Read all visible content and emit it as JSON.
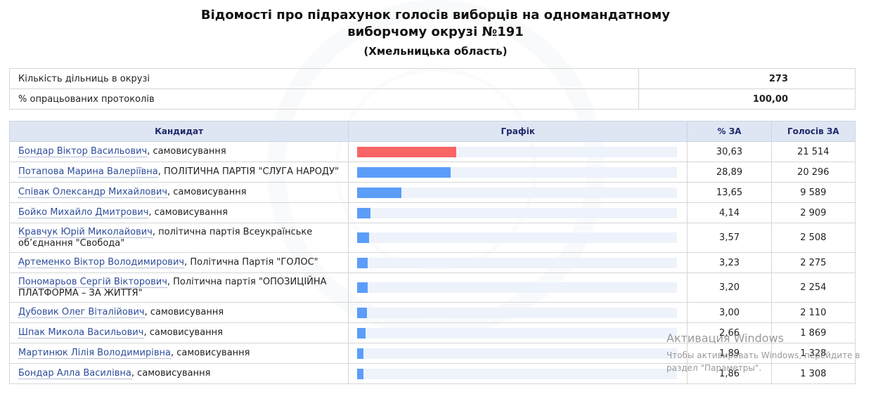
{
  "title_line1": "Відомості про підрахунок голосів виборців на одномандатному",
  "title_line2": "виборчому окрузі №191",
  "region": "(Хмельницька область)",
  "summary": [
    {
      "label": "Кількість дільниць в окрузі",
      "value": "273"
    },
    {
      "label": "% опрацьованих протоколів",
      "value": "100,00"
    }
  ],
  "columns": {
    "candidate": "Кандидат",
    "graph": "Графік",
    "percent": "% ЗА",
    "votes": "Голосів ЗА"
  },
  "colors": {
    "leader_bar": "#f96464",
    "bar": "#5b9df9",
    "track": "#eef2fb",
    "header_bg": "#dfe6f3"
  },
  "candidates": [
    {
      "name": "Бондар Віктор Васильович",
      "party": ", самовисування",
      "percent": "30,63",
      "votes": "21 514",
      "share": 30.63
    },
    {
      "name": "Потапова Марина Валеріївна",
      "party": ", ПОЛІТИЧНА ПАРТІЯ \"СЛУГА НАРОДУ\"",
      "percent": "28,89",
      "votes": "20 296",
      "share": 28.89
    },
    {
      "name": "Співак Олександр Михайлович",
      "party": ", самовисування",
      "percent": "13,65",
      "votes": "9 589",
      "share": 13.65
    },
    {
      "name": "Бойко Михайло Дмитрович",
      "party": ", самовисування",
      "percent": "4,14",
      "votes": "2 909",
      "share": 4.14
    },
    {
      "name": "Кравчук Юрій Миколайович",
      "party": ", політична партія Всеукраїнське об’єднання \"Свобода\"",
      "percent": "3,57",
      "votes": "2 508",
      "share": 3.57
    },
    {
      "name": "Артеменко Віктор Володимирович",
      "party": ", Політична Партія \"ГОЛОС\"",
      "percent": "3,23",
      "votes": "2 275",
      "share": 3.23
    },
    {
      "name": "Пономарьов Сергій Вікторович",
      "party": ", Політична партія \"ОПОЗИЦІЙНА ПЛАТФОРМА – ЗА ЖИТТЯ\"",
      "percent": "3,20",
      "votes": "2 254",
      "share": 3.2
    },
    {
      "name": "Дубовик Олег Віталійович",
      "party": ", самовисування",
      "percent": "3,00",
      "votes": "2 110",
      "share": 3.0
    },
    {
      "name": "Шпак Микола Васильович",
      "party": ", самовисування",
      "percent": "2,66",
      "votes": "1 869",
      "share": 2.66
    },
    {
      "name": "Мартинюк Лілія Володимирівна",
      "party": ", самовисування",
      "percent": "1,89",
      "votes": "1 328",
      "share": 1.89
    },
    {
      "name": "Бондар Алла Василівна",
      "party": ", самовисування",
      "percent": "1,86",
      "votes": "1 308",
      "share": 1.86
    }
  ],
  "windows_notice": {
    "line1": "Активация Windows",
    "line2": "Чтобы активировать Windows, перейдите в",
    "line3": "раздел \"Параметры\"."
  }
}
